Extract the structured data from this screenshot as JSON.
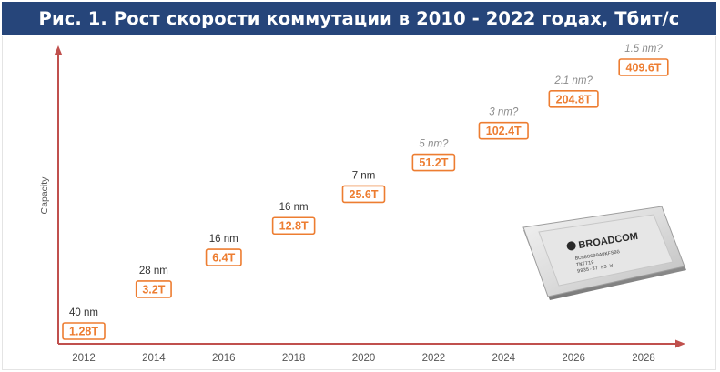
{
  "title": "Рис. 1. Рост скорости коммутации в 2010 - 2022 годах, Тбит/с",
  "chart_data": {
    "type": "scatter",
    "ylabel": "Capacity",
    "xlabel": "",
    "categories": [
      "2012",
      "2014",
      "2016",
      "2018",
      "2020",
      "2022",
      "2024",
      "2026",
      "2028"
    ],
    "values": [
      1.28,
      3.2,
      6.4,
      12.8,
      25.6,
      51.2,
      102.4,
      204.8,
      409.6
    ],
    "value_labels": [
      "1.28T",
      "3.2T",
      "6.4T",
      "12.8T",
      "25.6T",
      "51.2T",
      "102.4T",
      "204.8T",
      "409.6T"
    ],
    "node_labels": [
      "40 nm",
      "28 nm",
      "16 nm",
      "16 nm",
      "7 nm",
      "5 nm?",
      "3 nm?",
      "2.1 nm?",
      "1.5 nm?"
    ],
    "node_projected": [
      false,
      false,
      false,
      false,
      false,
      true,
      true,
      true,
      true
    ],
    "y_scale": "log2",
    "grid": false,
    "colors": {
      "axis": "#c0504d",
      "label_border": "#ed7d31",
      "label_text": "#ed7d31",
      "node_text": "#333333",
      "node_projected_text": "#8c8c8c",
      "tick_text": "#555555"
    }
  },
  "chip": {
    "brand": "BROADCOM",
    "markings": [
      "BCM88690A0KFSBG",
      "TNT719",
      "9935-37 N3 W"
    ]
  }
}
